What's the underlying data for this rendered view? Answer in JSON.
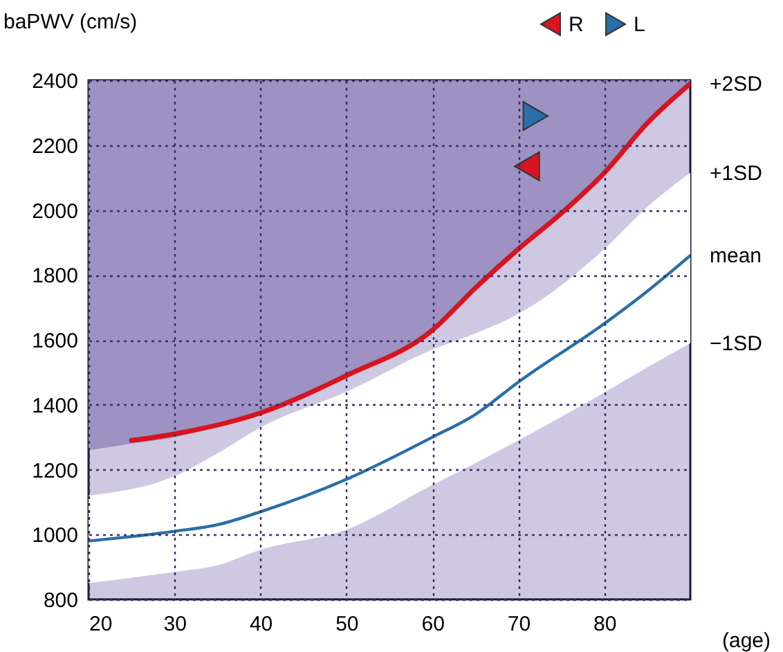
{
  "chart_data": {
    "type": "line",
    "ylabel": "baPWV (cm/s)",
    "xlabel": "(age)",
    "xlim": [
      20,
      90
    ],
    "xticks": [
      20,
      30,
      40,
      50,
      60,
      70,
      80
    ],
    "ylim": [
      800,
      2400
    ],
    "yticks": [
      800,
      1000,
      1200,
      1400,
      1600,
      1800,
      2000,
      2200,
      2400
    ],
    "grid": true,
    "legend": "top right",
    "line_style": "solid",
    "annotations": [
      {
        "text": "+1SD",
        "x": 90,
        "y": 2115
      },
      {
        "text": "−1SD",
        "x": 90,
        "y": 1590
      }
    ],
    "series": [
      {
        "name": "mean",
        "type": "line",
        "color": "#2a6fa8",
        "x": [
          20,
          30,
          35,
          40,
          50,
          60,
          65,
          70,
          80,
          85,
          90
        ],
        "values": [
          980,
          1010,
          1030,
          1070,
          1170,
          1300,
          1370,
          1470,
          1650,
          1750,
          1860
        ],
        "lower": [
          850,
          885,
          905,
          953,
          1015,
          1153,
          1220,
          1290,
          1438,
          1515,
          1590
        ],
        "upper": [
          1120,
          1180,
          1250,
          1330,
          1440,
          1570,
          1620,
          1680,
          1880,
          2010,
          2115
        ]
      },
      {
        "name": "+2SD",
        "type": "line",
        "color": "#d7141f",
        "x": [
          20,
          25,
          30,
          40,
          50,
          60,
          65,
          70,
          75,
          80,
          85,
          90
        ],
        "values": [
          null,
          1290,
          1310,
          1375,
          1490,
          1630,
          1760,
          1880,
          1990,
          2115,
          2268,
          2390
        ],
        "lower": [
          1260,
          1280,
          1300,
          1375,
          1490,
          1630,
          1760,
          1880,
          1990,
          2115,
          2268,
          2390
        ],
        "upper": [
          2400,
          2400,
          2400,
          2400,
          2400,
          2400,
          2400,
          2400,
          2400,
          2400,
          2400,
          2400
        ]
      },
      {
        "name": "R",
        "type": "scatter",
        "marker": "triangle-left",
        "color": "#d7141f",
        "x": [
          71
        ],
        "values": [
          2135
        ]
      },
      {
        "name": "L",
        "type": "scatter",
        "marker": "triangle-right",
        "color": "#2a6fa8",
        "x": [
          72
        ],
        "values": [
          2290
        ]
      }
    ]
  }
}
